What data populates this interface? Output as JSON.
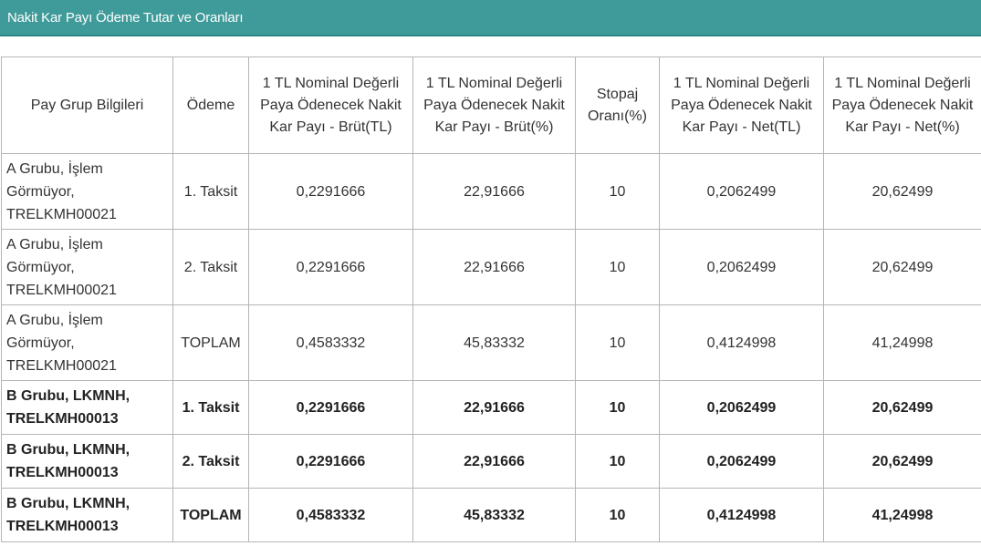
{
  "title": "Nakit Kar Payı Ödeme Tutar ve Oranları",
  "headers": [
    "Pay Grup Bilgileri",
    "Ödeme",
    "1 TL Nominal Değerli Paya Ödenecek Nakit Kar Payı - Brüt(TL)",
    "1 TL Nominal Değerli Paya Ödenecek Nakit Kar Payı - Brüt(%)",
    "Stopaj Oranı(%)",
    "1 TL Nominal Değerli Paya Ödenecek Nakit Kar Payı - Net(TL)",
    "1 TL Nominal Değerli Paya Ödenecek Nakit Kar Payı - Net(%)"
  ],
  "rows": [
    {
      "group": "A Grubu, İşlem Görmüyor, TRELKMH00021",
      "payment": "1. Taksit",
      "gross_tl": "0,2291666",
      "gross_pct": "22,91666",
      "withholding": "10",
      "net_tl": "0,2062499",
      "net_pct": "20,62499"
    },
    {
      "group": "A Grubu, İşlem Görmüyor, TRELKMH00021",
      "payment": "2. Taksit",
      "gross_tl": "0,2291666",
      "gross_pct": "22,91666",
      "withholding": "10",
      "net_tl": "0,2062499",
      "net_pct": "20,62499"
    },
    {
      "group": "A Grubu, İşlem Görmüyor, TRELKMH00021",
      "payment": "TOPLAM",
      "gross_tl": "0,4583332",
      "gross_pct": "45,83332",
      "withholding": "10",
      "net_tl": "0,4124998",
      "net_pct": "41,24998"
    },
    {
      "group": "B Grubu, LKMNH, TRELKMH00013",
      "payment": "1. Taksit",
      "gross_tl": "0,2291666",
      "gross_pct": "22,91666",
      "withholding": "10",
      "net_tl": "0,2062499",
      "net_pct": "20,62499"
    },
    {
      "group": "B Grubu, LKMNH, TRELKMH00013",
      "payment": "2. Taksit",
      "gross_tl": "0,2291666",
      "gross_pct": "22,91666",
      "withholding": "10",
      "net_tl": "0,2062499",
      "net_pct": "20,62499"
    },
    {
      "group": "B Grubu, LKMNH, TRELKMH00013",
      "payment": "TOPLAM",
      "gross_tl": "0,4583332",
      "gross_pct": "45,83332",
      "withholding": "10",
      "net_tl": "0,4124998",
      "net_pct": "41,24998"
    }
  ],
  "colors": {
    "title_bar": "#3f9a9a",
    "title_text": "#ffffff",
    "border": "#b5b5b5",
    "text": "#333333"
  }
}
